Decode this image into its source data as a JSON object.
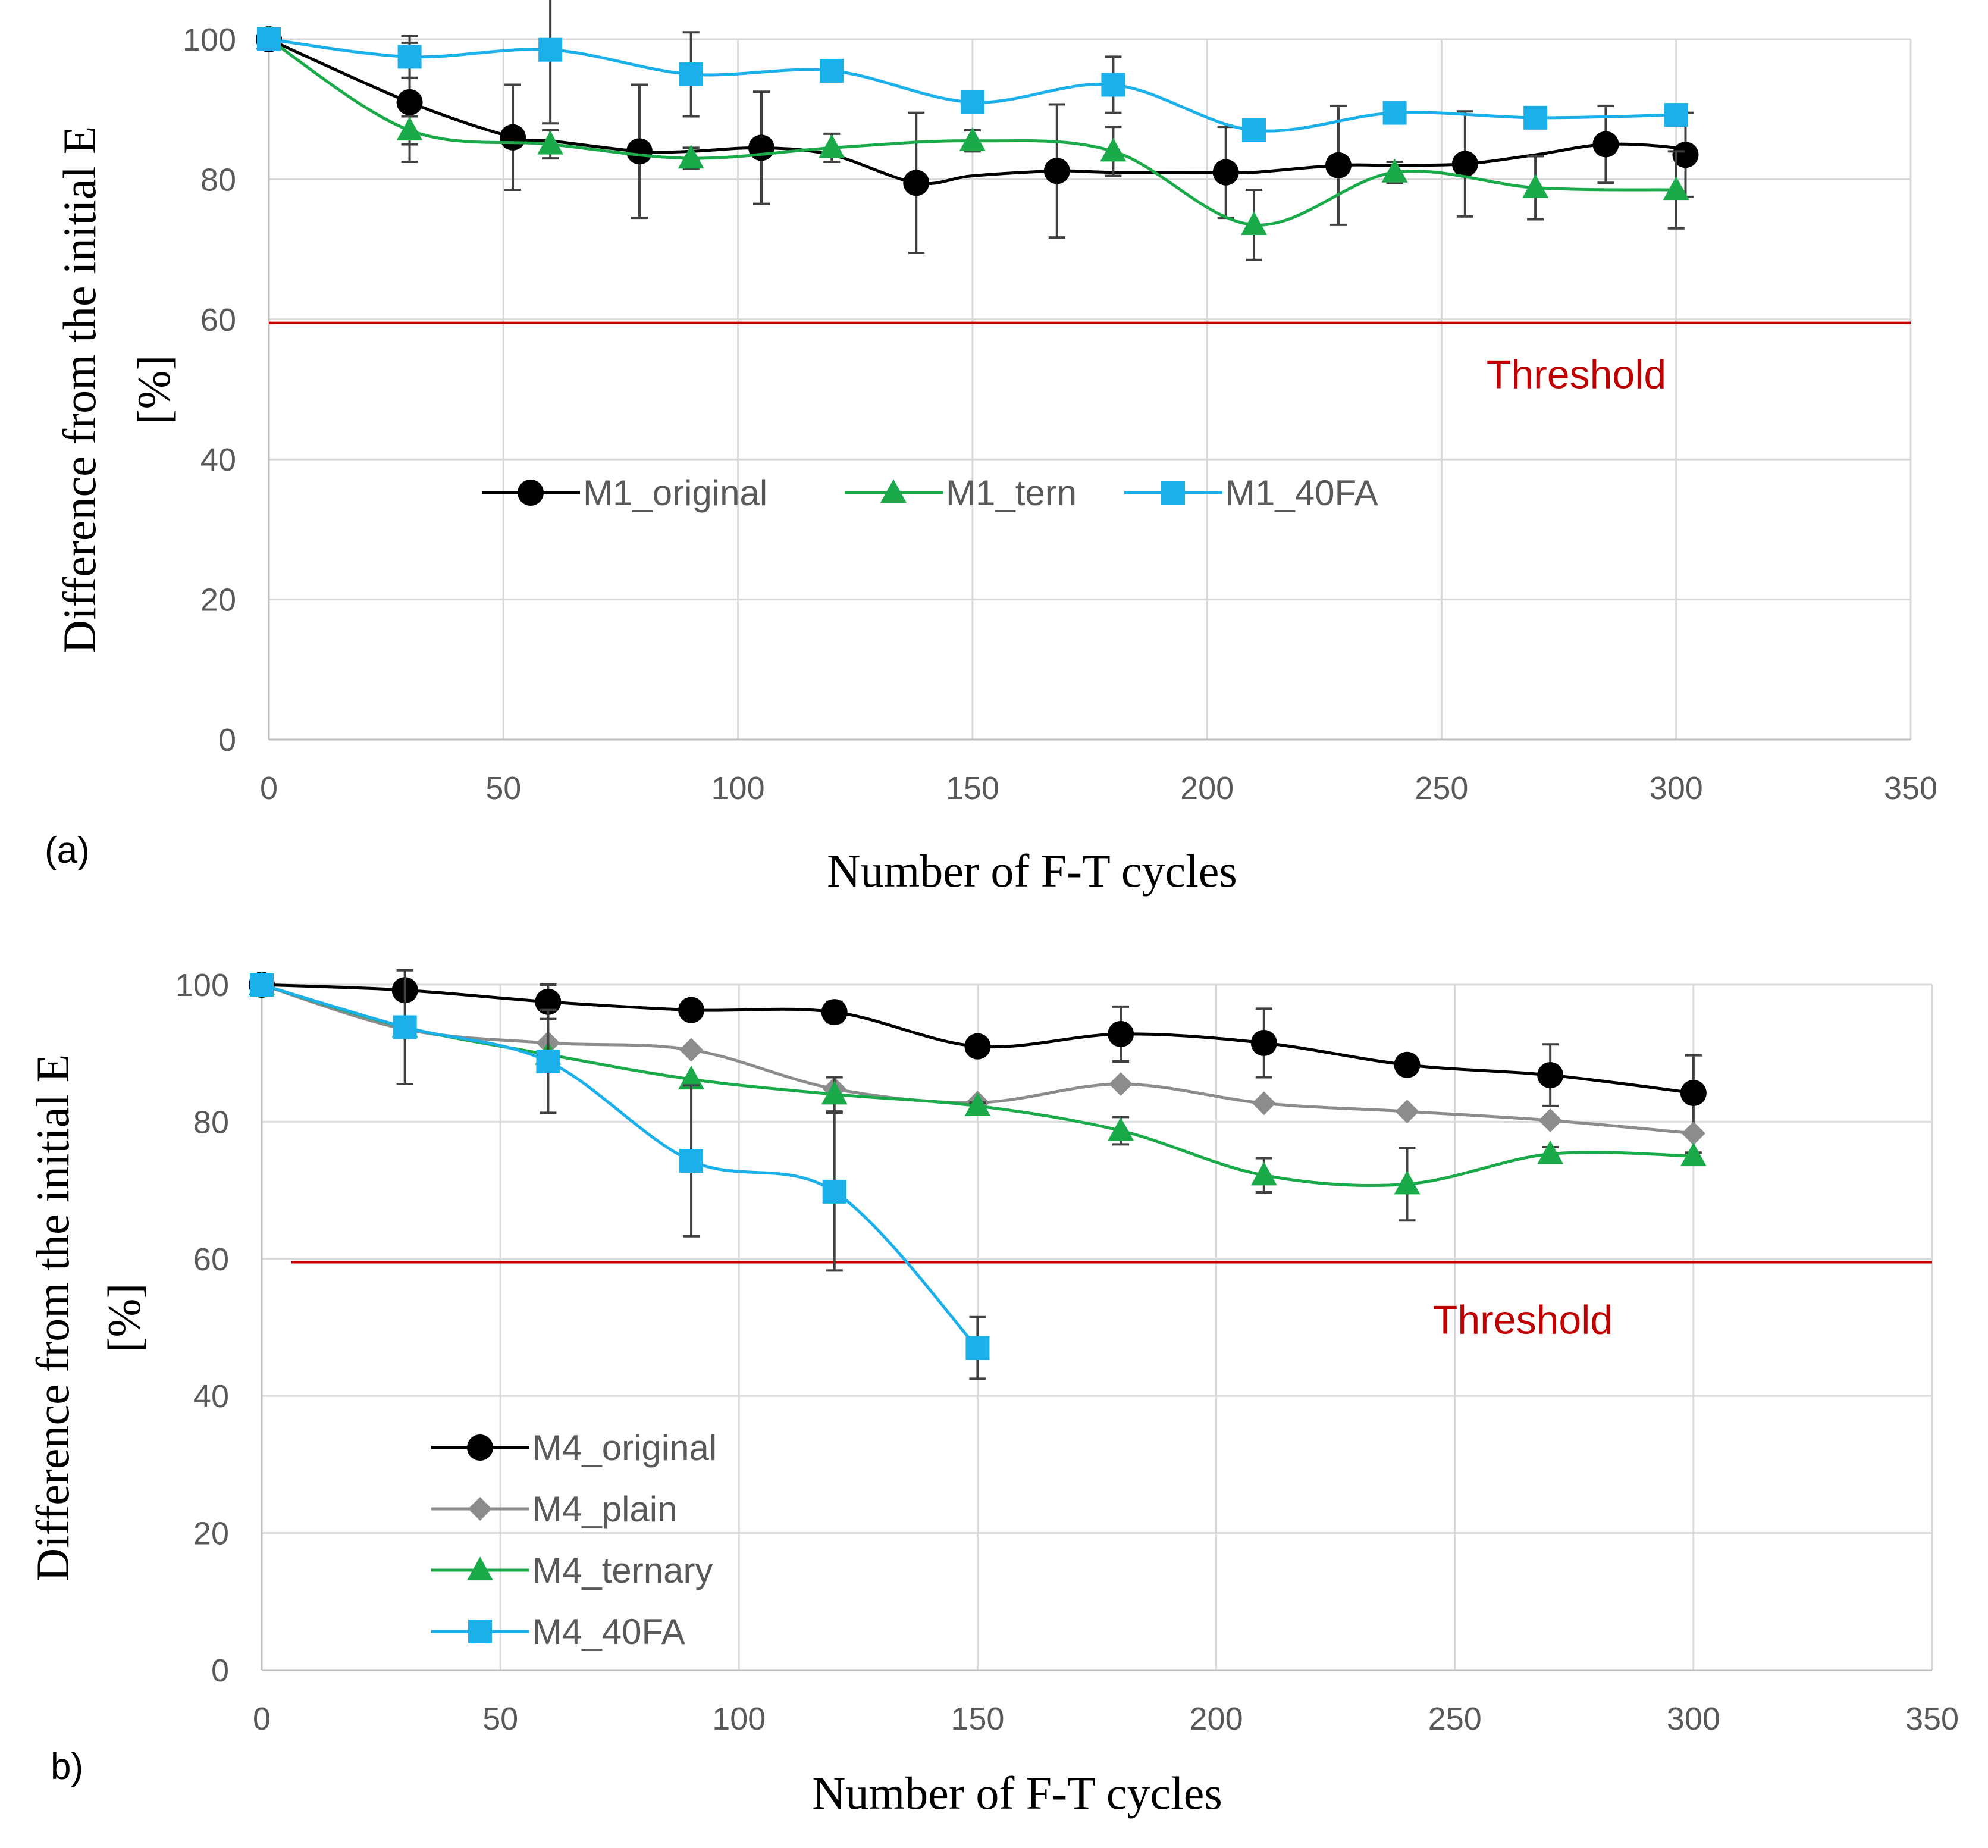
{
  "chart_data": [
    {
      "type": "line",
      "panel_label": "(a)",
      "xlabel": "Number of F-T cycles",
      "ylabel_line1": "Difference from the initial E",
      "ylabel_line2": "[%]",
      "xlim": [
        0,
        350
      ],
      "ylim": [
        0,
        100
      ],
      "xticks": [
        0,
        50,
        100,
        150,
        200,
        250,
        300,
        350
      ],
      "yticks": [
        0,
        20,
        40,
        60,
        80,
        100
      ],
      "grid": true,
      "legend_position": "middle-center",
      "legend_layout": "row",
      "threshold": {
        "value": 59.5,
        "label": "Threshold",
        "color": "#c00000"
      },
      "series": [
        {
          "name": "M1_original",
          "color": "#000000",
          "marker": "circle",
          "x": [
            0,
            30,
            52,
            60,
            79,
            90,
            105,
            120,
            138,
            150,
            168,
            180,
            204,
            210,
            228,
            240,
            255,
            270,
            285,
            300,
            302
          ],
          "y": [
            100,
            91,
            86,
            85.5,
            84,
            84,
            84.5,
            83.5,
            79.5,
            80.5,
            81.2,
            81,
            81,
            81,
            82,
            82,
            82.2,
            83.5,
            85,
            84.5,
            83.5
          ],
          "markers": [
            true,
            true,
            true,
            false,
            true,
            false,
            true,
            false,
            true,
            false,
            true,
            false,
            true,
            false,
            true,
            false,
            true,
            false,
            true,
            false,
            true
          ],
          "err": [
            0,
            8.5,
            7.5,
            0,
            9.5,
            0,
            8,
            0,
            10,
            0,
            9.5,
            0,
            6.5,
            0,
            8.5,
            0,
            7.5,
            0,
            5.5,
            0,
            6
          ]
        },
        {
          "name": "M1_tern",
          "color": "#1aaa4a",
          "marker": "triangle",
          "x": [
            0,
            30,
            60,
            90,
            120,
            150,
            180,
            210,
            240,
            270,
            300
          ],
          "y": [
            100,
            87,
            85,
            83,
            84.5,
            85.5,
            84,
            73.5,
            81,
            78.8,
            78.5
          ],
          "err": [
            0,
            2,
            2,
            1.5,
            2,
            1.5,
            3.5,
            5,
            1.5,
            4.5,
            5.5
          ]
        },
        {
          "name": "M1_40FA",
          "color": "#1cb0eb",
          "marker": "square",
          "x": [
            0,
            30,
            60,
            90,
            120,
            150,
            180,
            210,
            240,
            270,
            300
          ],
          "y": [
            100,
            97.5,
            98.5,
            95,
            95.5,
            91,
            93.5,
            87,
            89.5,
            88.8,
            89.2
          ],
          "err": [
            0,
            3,
            10.5,
            6,
            1.5,
            1,
            4,
            0.8,
            1,
            1,
            0.8
          ]
        }
      ]
    },
    {
      "type": "line",
      "panel_label": "b)",
      "xlabel": "Number of F-T cycles",
      "ylabel_line1": "Difference from the initial E",
      "ylabel_line2": "[%]",
      "xlim": [
        0,
        350
      ],
      "ylim": [
        0,
        100
      ],
      "xticks": [
        0,
        50,
        100,
        150,
        200,
        250,
        300,
        350
      ],
      "yticks": [
        0,
        20,
        40,
        60,
        80,
        100
      ],
      "grid": true,
      "legend_position": "bottom-left",
      "legend_layout": "column",
      "threshold": {
        "value": 59.5,
        "label": "Threshold",
        "color": "#c00000"
      },
      "series": [
        {
          "name": "M4_original",
          "color": "#000000",
          "marker": "circle",
          "x": [
            0,
            30,
            60,
            90,
            120,
            150,
            180,
            210,
            240,
            270,
            300
          ],
          "y": [
            100,
            99.2,
            97.5,
            96.3,
            96,
            91,
            92.8,
            91.5,
            88.3,
            86.8,
            84.2
          ],
          "err": [
            0,
            0.8,
            2.5,
            0.6,
            1.5,
            1,
            4,
            5,
            1,
            4.5,
            5.5
          ]
        },
        {
          "name": "M4_plain",
          "color": "#8c8c8c",
          "marker": "diamond",
          "x": [
            0,
            30,
            60,
            90,
            120,
            150,
            180,
            210,
            240,
            270,
            300
          ],
          "y": [
            100,
            93.5,
            91.5,
            90.5,
            84.8,
            82.8,
            85.5,
            82.7,
            81.5,
            80.2,
            78.3
          ],
          "err": [
            0,
            0,
            0,
            0,
            0,
            0,
            0,
            0,
            0,
            0,
            0
          ]
        },
        {
          "name": "M4_ternary",
          "color": "#1aaa4a",
          "marker": "triangle",
          "x": [
            0,
            30,
            60,
            90,
            120,
            150,
            180,
            210,
            240,
            270,
            300
          ],
          "y": [
            100,
            93.8,
            89.8,
            86.2,
            84,
            82.3,
            78.7,
            72.2,
            70.9,
            75.3,
            75
          ],
          "err": [
            0,
            0,
            0,
            0,
            2.5,
            0.5,
            2,
            2.5,
            5.3,
            1,
            0.5
          ]
        },
        {
          "name": "M4_40FA",
          "color": "#1cb0eb",
          "marker": "square",
          "x": [
            0,
            30,
            60,
            90,
            120,
            150
          ],
          "y": [
            100,
            93.8,
            88.8,
            74.3,
            69.8,
            47
          ],
          "err": [
            0,
            8.3,
            7.5,
            11,
            11.5,
            4.5
          ]
        }
      ]
    }
  ]
}
